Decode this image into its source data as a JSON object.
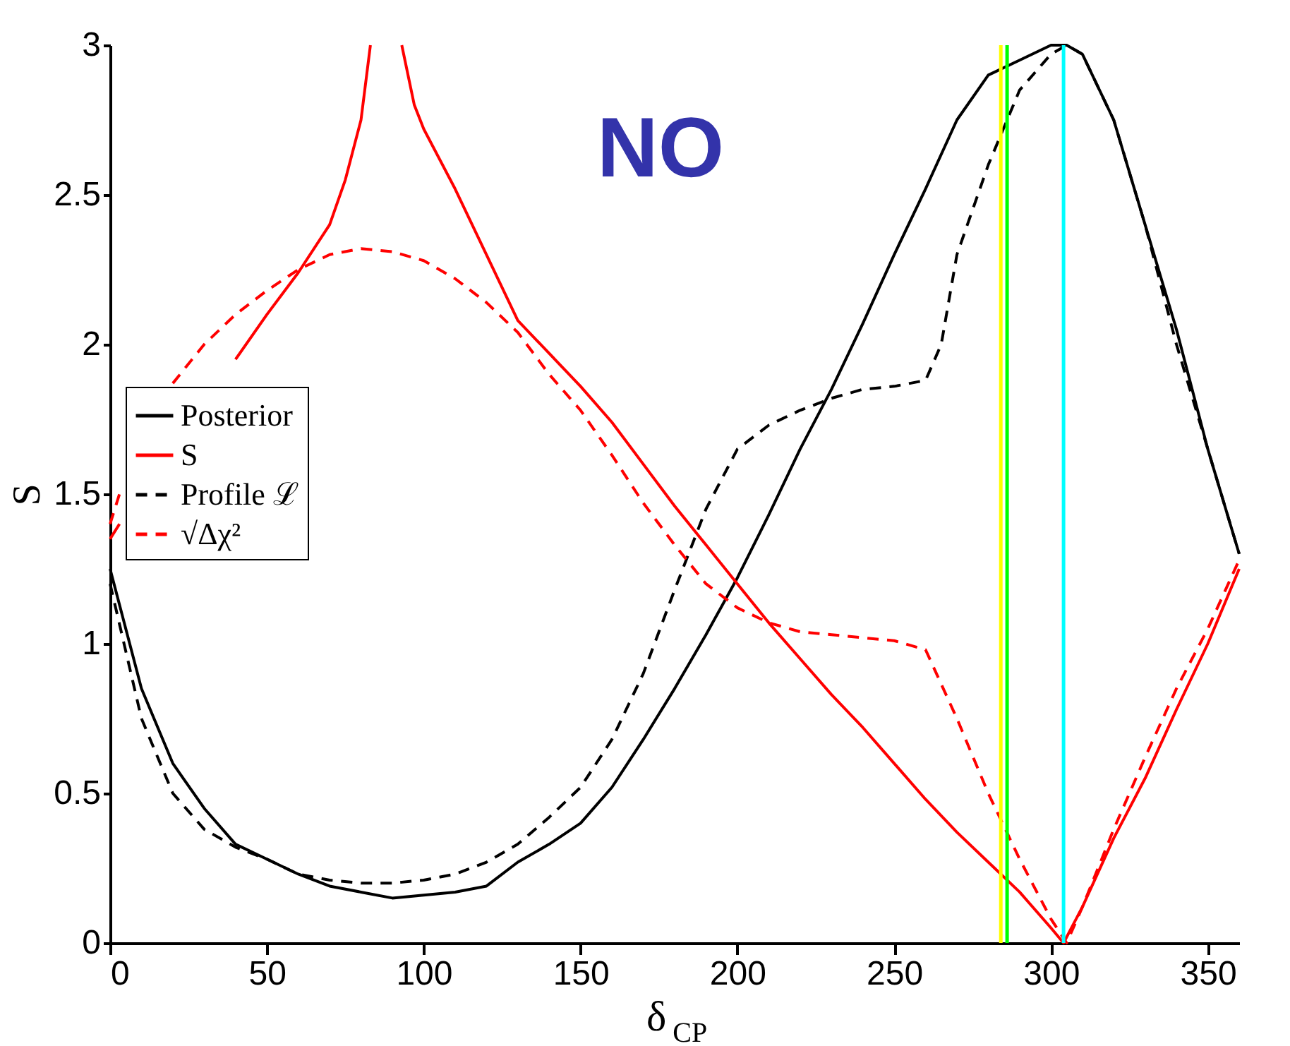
{
  "chart_data": {
    "type": "line",
    "xlabel": "δ$_{CP}$",
    "ylabel": "S",
    "annotations": [
      "NO"
    ],
    "xlim": [
      0,
      360
    ],
    "xticks": [
      0,
      50,
      100,
      150,
      200,
      250,
      300,
      350
    ],
    "ylim": [
      0,
      3
    ],
    "yticks": [
      0,
      0.5,
      1,
      1.5,
      2,
      2.5,
      3
    ],
    "grid": false,
    "legend": "left",
    "marker": "none",
    "series": [
      {
        "name": "Posterior",
        "color": "#000000",
        "line_style": "solid",
        "x": [
          0,
          10,
          20,
          30,
          40,
          50,
          60,
          70,
          80,
          90,
          100,
          110,
          120,
          130,
          140,
          150,
          160,
          170,
          180,
          190,
          200,
          210,
          220,
          230,
          240,
          250,
          260,
          270,
          280,
          290,
          300,
          305,
          310,
          320,
          330,
          340,
          350,
          360
        ],
        "values": [
          1.25,
          0.85,
          0.6,
          0.45,
          0.33,
          0.28,
          0.23,
          0.19,
          0.17,
          0.15,
          0.16,
          0.17,
          0.19,
          0.27,
          0.33,
          0.4,
          0.52,
          0.68,
          0.85,
          1.03,
          1.22,
          1.43,
          1.65,
          1.85,
          2.07,
          2.3,
          2.52,
          2.75,
          2.9,
          2.95,
          3.0,
          3.0,
          2.97,
          2.75,
          2.4,
          2.05,
          1.65,
          1.3
        ]
      },
      {
        "name": "S",
        "color": "#ff0000",
        "line_style": "solid",
        "x": [
          0,
          3,
          10,
          20,
          30,
          40,
          50,
          60,
          70,
          75,
          80,
          83,
          88,
          93,
          97,
          100,
          110,
          120,
          130,
          140,
          150,
          160,
          170,
          180,
          190,
          200,
          210,
          220,
          230,
          240,
          250,
          260,
          270,
          280,
          290,
          300,
          304,
          310,
          320,
          330,
          340,
          350,
          360
        ],
        "values": [
          1.35,
          1.4,
          null,
          null,
          null,
          1.95,
          2.1,
          2.24,
          2.4,
          2.55,
          2.75,
          3.0,
          null,
          3.0,
          2.8,
          2.72,
          2.52,
          2.3,
          2.08,
          1.97,
          1.86,
          1.74,
          1.6,
          1.46,
          1.33,
          1.2,
          1.07,
          0.95,
          0.83,
          0.72,
          0.6,
          0.48,
          0.37,
          0.27,
          0.17,
          0.05,
          0.0,
          0.12,
          0.35,
          0.55,
          0.78,
          1.0,
          1.25
        ]
      },
      {
        "name": "Profile ℒ",
        "color": "#000000",
        "line_style": "dashed",
        "x": [
          0,
          10,
          20,
          30,
          40,
          50,
          60,
          70,
          80,
          90,
          100,
          110,
          120,
          130,
          140,
          150,
          160,
          170,
          180,
          190,
          200,
          210,
          220,
          230,
          240,
          250,
          260,
          265,
          270,
          280,
          290,
          300,
          305,
          310,
          320,
          330,
          340,
          350,
          360
        ],
        "values": [
          1.2,
          0.75,
          0.5,
          0.38,
          0.32,
          0.28,
          0.23,
          0.21,
          0.2,
          0.2,
          0.21,
          0.23,
          0.27,
          0.33,
          0.42,
          0.52,
          0.68,
          0.9,
          1.18,
          1.45,
          1.65,
          1.73,
          1.78,
          1.82,
          1.85,
          1.86,
          1.88,
          2.0,
          2.3,
          2.6,
          2.85,
          2.97,
          3.0,
          2.97,
          2.75,
          2.4,
          2.0,
          1.65,
          1.3
        ]
      },
      {
        "name": "√Δχ²",
        "color": "#ff0000",
        "line_style": "dashed",
        "x": [
          0,
          3,
          10,
          20,
          30,
          40,
          50,
          60,
          70,
          80,
          90,
          100,
          110,
          120,
          130,
          140,
          150,
          160,
          170,
          180,
          190,
          200,
          210,
          220,
          230,
          240,
          250,
          260,
          270,
          280,
          290,
          300,
          305,
          310,
          320,
          330,
          340,
          350,
          360
        ],
        "values": [
          1.4,
          1.5,
          null,
          1.87,
          2.0,
          2.1,
          2.18,
          2.25,
          2.3,
          2.32,
          2.31,
          2.28,
          2.22,
          2.14,
          2.04,
          1.9,
          1.78,
          1.63,
          1.47,
          1.33,
          1.2,
          1.12,
          1.07,
          1.04,
          1.03,
          1.02,
          1.01,
          0.98,
          0.75,
          0.5,
          0.28,
          0.08,
          0.0,
          0.12,
          0.38,
          0.62,
          0.85,
          1.05,
          1.28
        ]
      }
    ],
    "ref_lines": [
      {
        "axis": "x",
        "value": 284,
        "color": "#ffff00",
        "line_style": "solid"
      },
      {
        "axis": "x",
        "value": 286,
        "color": "#00ff00",
        "line_style": "solid"
      },
      {
        "axis": "x",
        "value": 304,
        "color": "#00ffff",
        "line_style": "solid"
      }
    ]
  }
}
